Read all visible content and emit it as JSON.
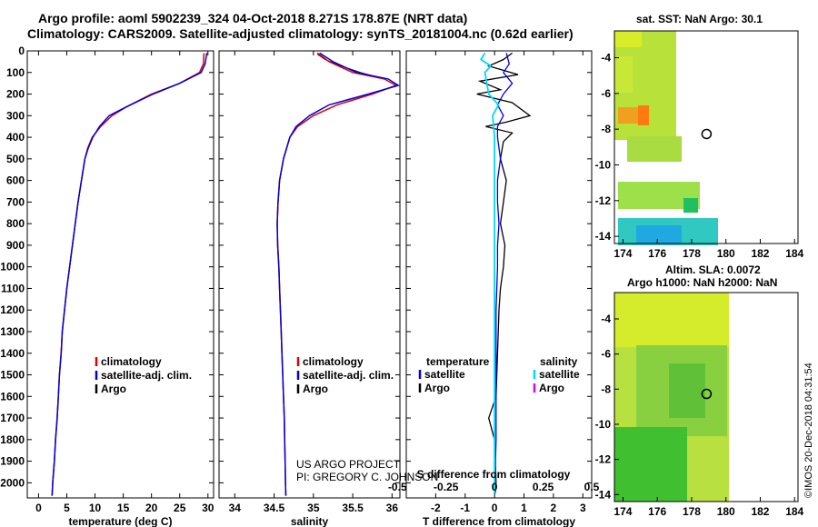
{
  "title_line1": "Argo profile: aoml 5902239_324 04-Oct-2018 8.271S 178.87E (NRT data)",
  "title_line2": "Climatology: CARS2009. Satellite-adjusted climatology: synTS_20181004.nc (0.62d earlier)",
  "sst_title": "sat. SST: NaN Argo: 30.1",
  "sla_title1": "Altim. SLA: 0.0072",
  "sla_title2": "Argo h1000: NaN h2000: NaN",
  "stamp": "©IMOS 20-Dec-2018 04:31:54",
  "credit1": "US ARGO PROJECT",
  "credit2": "PI: GREGORY C. JOHNSON",
  "colors": {
    "climatology": "#e00000",
    "satellite": "#0000e0",
    "argo": "#000000",
    "sat_salinity": "#00d8ff",
    "argo_salinity": "#e000e0"
  },
  "chart_data": [
    {
      "type": "line",
      "xlabel": "temperature (deg C)",
      "xlim": [
        -2,
        31
      ],
      "xticks": [
        0,
        5,
        10,
        15,
        20,
        25,
        30
      ],
      "xtick_labels": [
        "0",
        "5",
        "10",
        "15",
        "20",
        "25",
        "30"
      ],
      "ylim": [
        0,
        2070
      ],
      "yticks": [
        0,
        100,
        200,
        300,
        400,
        500,
        600,
        700,
        800,
        900,
        1000,
        1100,
        1200,
        1300,
        1400,
        1500,
        1600,
        1700,
        1800,
        1900,
        2000
      ],
      "ytick_labels": [
        "0",
        "100",
        "200",
        "300",
        "400",
        "500",
        "600",
        "700",
        "800",
        "900",
        "1000",
        "1100",
        "1200",
        "1300",
        "1400",
        "1500",
        "1600",
        "1700",
        "1800",
        "1900",
        "2000"
      ],
      "legend": [
        "climatology",
        "satellite-adj. clim.",
        "Argo"
      ],
      "series": [
        {
          "name": "climatology",
          "values": [
            [
              29.3,
              10
            ],
            [
              29.2,
              60
            ],
            [
              28.5,
              100
            ],
            [
              25,
              150
            ],
            [
              20,
              200
            ],
            [
              15.5,
              260
            ],
            [
              13,
              300
            ],
            [
              11,
              350
            ],
            [
              9.5,
              400
            ],
            [
              8.7,
              450
            ],
            [
              8.2,
              500
            ],
            [
              7.6,
              600
            ],
            [
              7,
              700
            ],
            [
              6.5,
              800
            ],
            [
              6,
              900
            ],
            [
              5.5,
              1000
            ],
            [
              5,
              1100
            ],
            [
              4.6,
              1200
            ],
            [
              4.2,
              1300
            ],
            [
              4,
              1400
            ],
            [
              3.7,
              1500
            ],
            [
              3.5,
              1600
            ],
            [
              3.3,
              1700
            ],
            [
              3,
              1800
            ],
            [
              2.8,
              1900
            ],
            [
              2.5,
              2000
            ],
            [
              2.4,
              2060
            ]
          ]
        },
        {
          "name": "satellite",
          "values": [
            [
              29.8,
              10
            ],
            [
              29.5,
              60
            ],
            [
              28.8,
              100
            ],
            [
              25,
              150
            ],
            [
              20.3,
              200
            ],
            [
              15.5,
              260
            ],
            [
              12.5,
              300
            ],
            [
              10.8,
              350
            ],
            [
              9.6,
              400
            ],
            [
              8.8,
              450
            ],
            [
              8.2,
              500
            ],
            [
              7.6,
              600
            ],
            [
              7,
              700
            ],
            [
              6.5,
              800
            ],
            [
              6,
              900
            ],
            [
              5.5,
              1000
            ],
            [
              5,
              1100
            ],
            [
              4.6,
              1200
            ],
            [
              4.2,
              1300
            ],
            [
              4,
              1400
            ],
            [
              3.7,
              1500
            ],
            [
              3.5,
              1600
            ],
            [
              3.3,
              1700
            ],
            [
              3,
              1800
            ],
            [
              2.8,
              1900
            ],
            [
              2.5,
              2000
            ],
            [
              2.4,
              2060
            ]
          ]
        }
      ]
    },
    {
      "type": "line",
      "xlabel": "salinity",
      "xlim": [
        33.8,
        36.1
      ],
      "xticks": [
        34,
        34.5,
        35,
        35.5,
        36
      ],
      "xtick_labels": [
        "34",
        "34.5",
        "35",
        "35.5",
        "36"
      ],
      "legend": [
        "climatology",
        "satellite-adj. clim.",
        "Argo"
      ],
      "series": [
        {
          "name": "climatology",
          "values": [
            [
              35.05,
              10
            ],
            [
              35.2,
              50
            ],
            [
              35.5,
              100
            ],
            [
              35.9,
              130
            ],
            [
              36.05,
              160
            ],
            [
              35.75,
              200
            ],
            [
              35.3,
              250
            ],
            [
              35,
              300
            ],
            [
              34.8,
              350
            ],
            [
              34.7,
              400
            ],
            [
              34.62,
              500
            ],
            [
              34.57,
              600
            ],
            [
              34.55,
              700
            ],
            [
              34.54,
              800
            ],
            [
              34.545,
              900
            ],
            [
              34.56,
              1000
            ],
            [
              34.57,
              1100
            ],
            [
              34.58,
              1200
            ],
            [
              34.59,
              1300
            ],
            [
              34.6,
              1400
            ],
            [
              34.61,
              1500
            ],
            [
              34.62,
              1600
            ],
            [
              34.63,
              1700
            ],
            [
              34.635,
              1800
            ],
            [
              34.64,
              1900
            ],
            [
              34.645,
              2000
            ],
            [
              34.65,
              2060
            ]
          ]
        },
        {
          "name": "satellite",
          "values": [
            [
              35.08,
              10
            ],
            [
              35.25,
              50
            ],
            [
              35.55,
              100
            ],
            [
              35.95,
              130
            ],
            [
              36.08,
              160
            ],
            [
              35.7,
              200
            ],
            [
              35.2,
              250
            ],
            [
              34.95,
              300
            ],
            [
              34.78,
              350
            ],
            [
              34.7,
              400
            ],
            [
              34.62,
              500
            ],
            [
              34.57,
              600
            ],
            [
              34.55,
              700
            ],
            [
              34.54,
              800
            ],
            [
              34.545,
              900
            ],
            [
              34.56,
              1000
            ],
            [
              34.57,
              1100
            ],
            [
              34.58,
              1200
            ],
            [
              34.59,
              1300
            ],
            [
              34.6,
              1400
            ],
            [
              34.61,
              1500
            ],
            [
              34.62,
              1600
            ],
            [
              34.63,
              1700
            ],
            [
              34.635,
              1800
            ],
            [
              34.64,
              1900
            ],
            [
              34.645,
              2000
            ],
            [
              34.65,
              2060
            ]
          ]
        },
        {
          "name": "argo",
          "values": [
            [
              35.05,
              15
            ],
            [
              35.15,
              40
            ],
            [
              35.35,
              70
            ],
            [
              35.6,
              100
            ],
            [
              35.9,
              130
            ]
          ]
        }
      ]
    },
    {
      "type": "line",
      "xlabel": "T difference from climatology",
      "xlabel2": "S difference from climatology",
      "xlim": [
        -3,
        3.3
      ],
      "xticks": [
        -2,
        -1,
        0,
        1,
        2,
        3
      ],
      "xtick_labels": [
        "-2",
        "-1",
        "0",
        "1",
        "2",
        "3"
      ],
      "xticks2": [
        -0.5,
        -0.25,
        0,
        0.25,
        0.5
      ],
      "xtick2_labels": [
        "-0.5",
        "-0.25",
        "0",
        "0.25",
        "0.5"
      ],
      "legend_temperature_title": "temperature",
      "legend_salinity_title": "salinity",
      "legend_items": [
        "satellite",
        "Argo"
      ],
      "series": [
        {
          "name": "T satellite",
          "values": [
            [
              0.4,
              10
            ],
            [
              0.5,
              60
            ],
            [
              0.3,
              100
            ],
            [
              0.6,
              150
            ],
            [
              0.3,
              200
            ],
            [
              0.1,
              250
            ],
            [
              0.3,
              300
            ],
            [
              0.1,
              350
            ],
            [
              0.1,
              400
            ],
            [
              0.2,
              500
            ],
            [
              0.1,
              600
            ],
            [
              0.1,
              700
            ],
            [
              0.15,
              800
            ],
            [
              0.1,
              900
            ],
            [
              0.1,
              1000
            ],
            [
              0.05,
              1200
            ],
            [
              0.05,
              1500
            ],
            [
              0.05,
              1800
            ],
            [
              0,
              2050
            ]
          ]
        },
        {
          "name": "T argo",
          "values": [
            [
              0.6,
              10
            ],
            [
              0.3,
              40
            ],
            [
              -0.2,
              70
            ],
            [
              0.8,
              110
            ],
            [
              -0.5,
              140
            ],
            [
              0.2,
              180
            ],
            [
              -0.6,
              200
            ],
            [
              0.6,
              240
            ],
            [
              1.2,
              300
            ],
            [
              0.4,
              330
            ],
            [
              -0.3,
              350
            ],
            [
              0.6,
              380
            ],
            [
              0.3,
              420
            ],
            [
              0.2,
              500
            ],
            [
              0.4,
              600
            ],
            [
              0.3,
              700
            ],
            [
              0.2,
              800
            ],
            [
              0.35,
              900
            ],
            [
              0.3,
              1000
            ],
            [
              0.2,
              1100
            ],
            [
              0.15,
              1200
            ],
            [
              0.1,
              1400
            ],
            [
              0.05,
              1600
            ],
            [
              -0.2,
              1700
            ],
            [
              0,
              1800
            ],
            [
              0.05,
              2000
            ],
            [
              0.02,
              2050
            ]
          ]
        },
        {
          "name": "S satellite",
          "values": [
            [
              -0.05,
              10
            ],
            [
              -0.07,
              40
            ],
            [
              -0.02,
              70
            ],
            [
              -0.05,
              100
            ],
            [
              -0.04,
              150
            ],
            [
              -0.03,
              200
            ],
            [
              0.02,
              250
            ],
            [
              -0.01,
              300
            ],
            [
              0,
              400
            ],
            [
              0,
              600
            ],
            [
              0,
              900
            ],
            [
              0,
              1200
            ],
            [
              0,
              1600
            ],
            [
              0,
              2050
            ]
          ]
        }
      ]
    }
  ],
  "sst_map": {
    "xticks": [
      174,
      176,
      178,
      180,
      182,
      184
    ],
    "xtick_labels": [
      "174",
      "176",
      "178",
      "180",
      "182",
      "184"
    ],
    "yticks": [
      -4,
      -6,
      -8,
      -10,
      -12,
      -14
    ],
    "ytick_labels": [
      "-4",
      "-6",
      "-8",
      "-10",
      "-12",
      "-14"
    ],
    "float_lon": 178.87,
    "float_lat": -8.271
  },
  "sla_map": {
    "xticks": [
      174,
      176,
      178,
      180,
      182,
      184
    ],
    "xtick_labels": [
      "174",
      "176",
      "178",
      "180",
      "182",
      "184"
    ],
    "yticks": [
      -4,
      -6,
      -8,
      -10,
      -12,
      -14
    ],
    "ytick_labels": [
      "-4",
      "-6",
      "-8",
      "-10",
      "-12",
      "-14"
    ],
    "float_lon": 178.87,
    "float_lat": -8.271
  }
}
